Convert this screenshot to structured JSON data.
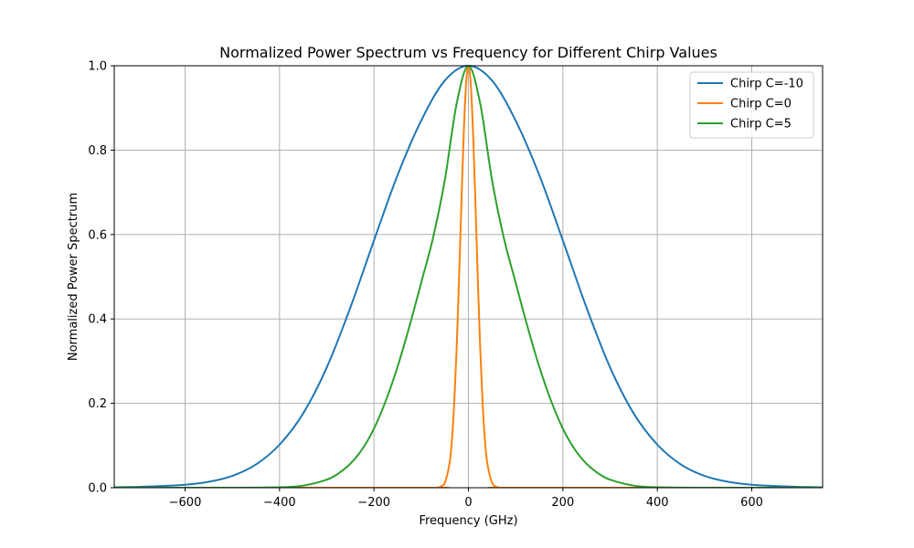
{
  "chart_data": {
    "type": "line",
    "title": "Normalized Power Spectrum vs Frequency for Different Chirp Values",
    "xlabel": "Frequency (GHz)",
    "ylabel": "Normalized Power Spectrum",
    "xlim": [
      -750,
      750
    ],
    "ylim": [
      0,
      1
    ],
    "xticks": [
      -600,
      -400,
      -200,
      0,
      200,
      400,
      600
    ],
    "xtick_labels": [
      "−600",
      "−400",
      "−200",
      "0",
      "200",
      "400",
      "600"
    ],
    "yticks": [
      0,
      0.2,
      0.4,
      0.6,
      0.8,
      1.0
    ],
    "ytick_labels": [
      "0.0",
      "0.2",
      "0.4",
      "0.6",
      "0.8",
      "1.0"
    ],
    "grid": true,
    "legend_position": "top-right",
    "series": [
      {
        "name": "Chirp C=-10",
        "color": "#1f77b4",
        "x": [
          -750,
          -700,
          -650,
          -600,
          -550,
          -500,
          -450,
          -400,
          -350,
          -300,
          -250,
          -200,
          -150,
          -100,
          -50,
          0,
          50,
          100,
          150,
          200,
          250,
          300,
          350,
          400,
          450,
          500,
          550,
          600,
          650,
          700,
          750
        ],
        "y": [
          0.001,
          0.002,
          0.004,
          0.007,
          0.014,
          0.028,
          0.055,
          0.102,
          0.176,
          0.285,
          0.427,
          0.586,
          0.741,
          0.87,
          0.965,
          1.0,
          0.965,
          0.87,
          0.741,
          0.586,
          0.427,
          0.285,
          0.176,
          0.102,
          0.055,
          0.028,
          0.014,
          0.007,
          0.004,
          0.002,
          0.001
        ]
      },
      {
        "name": "Chirp C=0",
        "color": "#ff7f0e",
        "x": [
          -750,
          -100,
          -70,
          -60,
          -50,
          -40,
          -35,
          -30,
          -25,
          -20,
          -15,
          -10,
          -5,
          0,
          5,
          10,
          15,
          20,
          25,
          30,
          35,
          40,
          50,
          60,
          70,
          100,
          750
        ],
        "y": [
          0.0,
          0.0,
          0.0,
          0.002,
          0.012,
          0.058,
          0.113,
          0.202,
          0.329,
          0.489,
          0.669,
          0.836,
          0.956,
          1.0,
          0.956,
          0.836,
          0.669,
          0.489,
          0.329,
          0.202,
          0.113,
          0.058,
          0.012,
          0.002,
          0.0,
          0.0,
          0.0
        ]
      },
      {
        "name": "Chirp C=5",
        "color": "#2ca02c",
        "x": [
          -750,
          -500,
          -400,
          -350,
          -300,
          -275,
          -250,
          -225,
          -200,
          -175,
          -150,
          -125,
          -100,
          -75,
          -50,
          -25,
          0,
          25,
          50,
          75,
          100,
          125,
          150,
          175,
          200,
          225,
          250,
          275,
          300,
          350,
          400,
          500,
          750
        ],
        "y": [
          0.0,
          0.0,
          0.001,
          0.005,
          0.019,
          0.034,
          0.057,
          0.091,
          0.14,
          0.206,
          0.287,
          0.382,
          0.486,
          0.592,
          0.729,
          0.91,
          1.0,
          0.91,
          0.729,
          0.592,
          0.486,
          0.382,
          0.287,
          0.206,
          0.14,
          0.091,
          0.057,
          0.034,
          0.019,
          0.005,
          0.001,
          0.0,
          0.0
        ]
      }
    ]
  }
}
